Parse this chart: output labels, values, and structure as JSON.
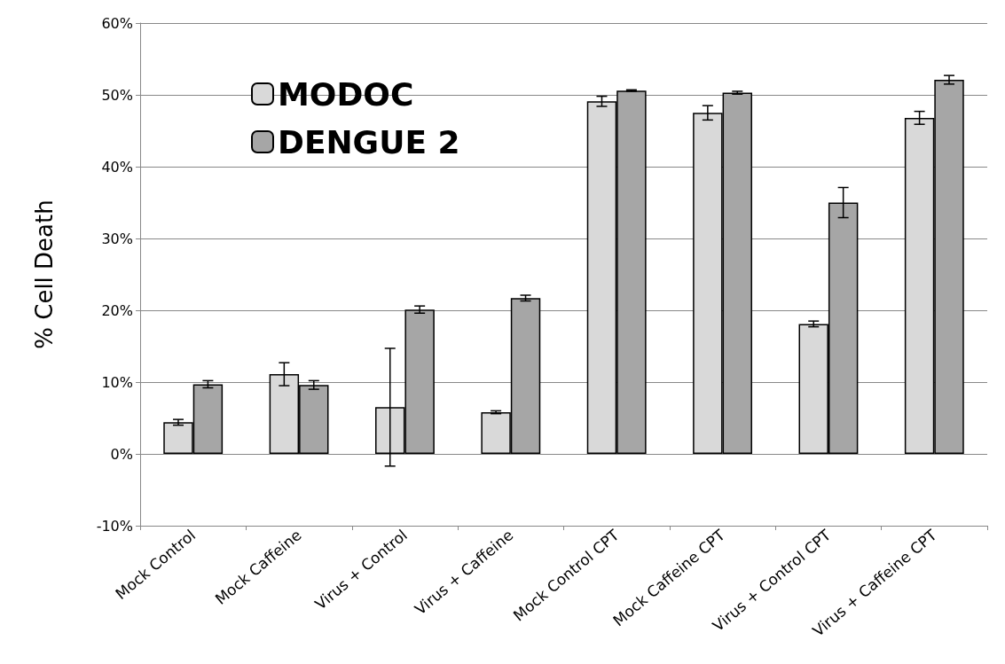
{
  "chart_data": {
    "type": "bar",
    "ylabel": "% Cell Death",
    "categories": [
      "Mock Control",
      "Mock Caffeine",
      "Virus + Control",
      "Virus + Caffeine",
      "Mock Control CPT",
      "Mock Caffeine CPT",
      "Virus + Control CPT",
      "Virus + Caffeine CPT"
    ],
    "series": [
      {
        "name": "MODOC",
        "color": "#d9d9d9",
        "values": [
          4.4,
          11.1,
          6.5,
          5.8,
          49.1,
          47.5,
          18.1,
          46.8
        ],
        "errors": [
          0.4,
          1.6,
          8.2,
          0.2,
          0.7,
          1.0,
          0.4,
          0.9
        ]
      },
      {
        "name": "DENGUE 2",
        "color": "#a6a6a6",
        "values": [
          9.7,
          9.6,
          20.1,
          21.7,
          50.6,
          50.3,
          35.0,
          52.1
        ],
        "errors": [
          0.5,
          0.6,
          0.5,
          0.4,
          0.1,
          0.2,
          2.1,
          0.6
        ]
      }
    ],
    "ylim": [
      -10,
      60
    ],
    "yticks": [
      {
        "value": -10,
        "label": "-10%"
      },
      {
        "value": 0,
        "label": "0%"
      },
      {
        "value": 10,
        "label": "10%"
      },
      {
        "value": 20,
        "label": "20%"
      },
      {
        "value": 30,
        "label": "30%"
      },
      {
        "value": 40,
        "label": "40%"
      },
      {
        "value": 50,
        "label": "50%"
      },
      {
        "value": 60,
        "label": "60%"
      }
    ],
    "grid": "y",
    "legend": "top left"
  }
}
